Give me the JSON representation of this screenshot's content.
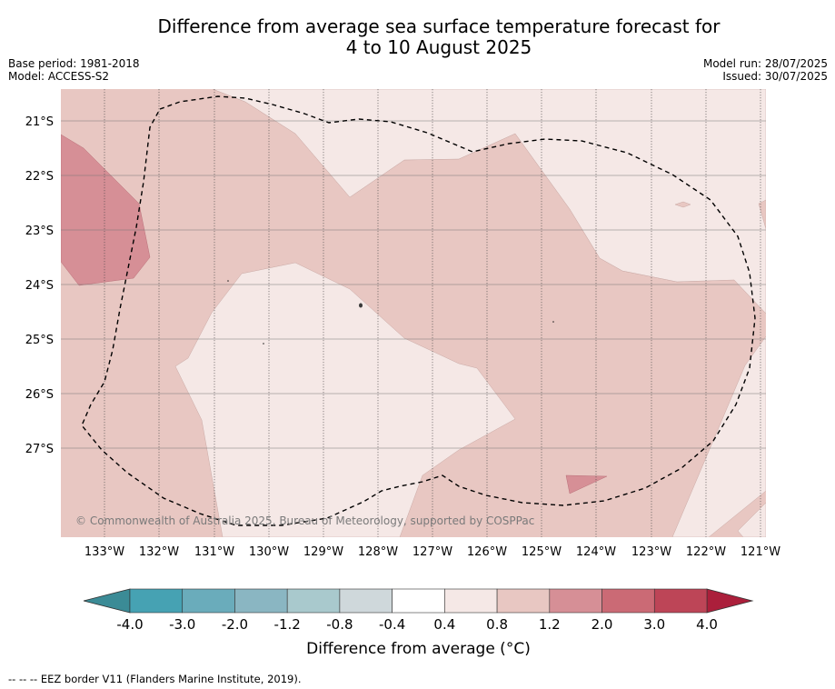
{
  "header": {
    "title_line1": "Difference from average sea surface temperature forecast for",
    "title_line2": "4 to 10 August 2025",
    "base_period": "Base period: 1981-2018",
    "model": "Model: ACCESS-S2",
    "model_run": "Model run: 28/07/2025",
    "issued": "Issued: 30/07/2025"
  },
  "map": {
    "lat_labels": [
      "21°S",
      "22°S",
      "23°S",
      "24°S",
      "25°S",
      "26°S",
      "27°S"
    ],
    "lon_labels": [
      "133°W",
      "132°W",
      "131°W",
      "130°W",
      "129°W",
      "128°W",
      "127°W",
      "126°W",
      "125°W",
      "124°W",
      "123°W",
      "122°W",
      "121°W"
    ],
    "copyright": "© Commonwealth of Australia 2025, Bureau of Meteorology, supported by COSPPac",
    "region_colors": {
      "0.4_to_0.8": "#f5e8e6",
      "0.8_to_1.2": "#e8c7c2",
      "1.2_to_2.0": "#d68f96"
    },
    "eez_border_style": "dashed"
  },
  "colorbar": {
    "ticks": [
      "-4.0",
      "-3.0",
      "-2.0",
      "-1.2",
      "-0.8",
      "-0.4",
      "0.4",
      "0.8",
      "1.2",
      "2.0",
      "3.0",
      "4.0"
    ],
    "colors": [
      "#46a2b3",
      "#6aacbb",
      "#8ab6c2",
      "#a9c9cd",
      "#cfd8db",
      "#ffffff",
      "#f5e8e6",
      "#e8c7c2",
      "#d68f96",
      "#cb6a75",
      "#bd4557"
    ],
    "extend_low_color": "#3b8b96",
    "extend_high_color": "#ab1f3b",
    "label": "Difference from average (",
    "label_unit": "°C",
    "label_close": ")"
  },
  "footer": {
    "legend_line": "--  --  -- EEZ border V11 (Flanders Marine Institute, 2019)."
  }
}
